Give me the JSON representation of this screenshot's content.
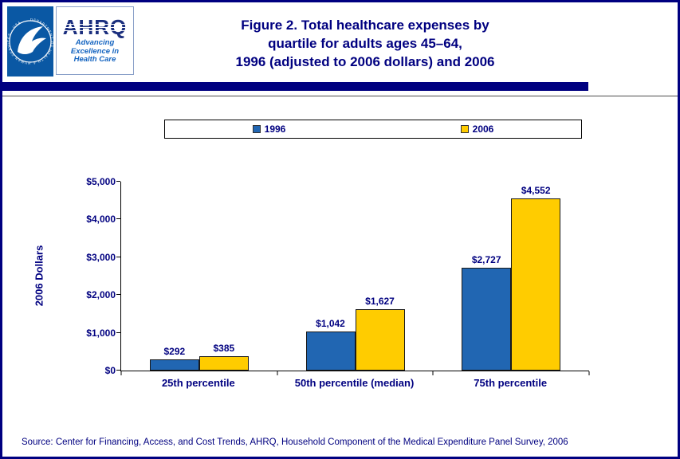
{
  "header": {
    "title_lines": [
      "Figure 2. Total healthcare expenses by",
      "quartile for adults ages 45–64,",
      "1996 (adjusted to 2006 dollars) and 2006"
    ],
    "hhs_seal_text": "DEPARTMENT OF HEALTH & HUMAN SERVICES · USA",
    "ahrq": {
      "acronym": "AHRQ",
      "tagline_lines": [
        "Advancing",
        "Excellence in",
        "Health Care"
      ]
    }
  },
  "chart_data": {
    "type": "bar",
    "title": "Figure 2. Total healthcare expenses by quartile for adults ages 45–64, 1996 (adjusted to 2006 dollars) and 2006",
    "categories": [
      "25th percentile",
      "50th percentile (median)",
      "75th percentile"
    ],
    "series": [
      {
        "name": "1996",
        "color": "#2166B2",
        "values": [
          292,
          1042,
          2727
        ],
        "labels": [
          "$292",
          "$1,042",
          "$2,727"
        ]
      },
      {
        "name": "2006",
        "color": "#FFCC00",
        "values": [
          385,
          1627,
          4552
        ],
        "labels": [
          "$385",
          "$1,627",
          "$4,552"
        ]
      }
    ],
    "xlabel": "",
    "ylabel": "2006 Dollars",
    "ylim": [
      0,
      5000
    ],
    "ytick_interval": 1000,
    "ytick_labels": [
      "$0",
      "$1,000",
      "$2,000",
      "$3,000",
      "$4,000",
      "$5,000"
    ],
    "grid": false,
    "legend_position": "top"
  },
  "footer": {
    "source": "Source: Center for Financing, Access, and Cost Trends, AHRQ, Household Component of the Medical Expenditure Panel Survey, 2006"
  },
  "colors": {
    "accent_navy": "#000080",
    "hhs_blue": "#0A58A4",
    "bar_blue": "#2166B2",
    "bar_gold": "#FFCC00"
  }
}
